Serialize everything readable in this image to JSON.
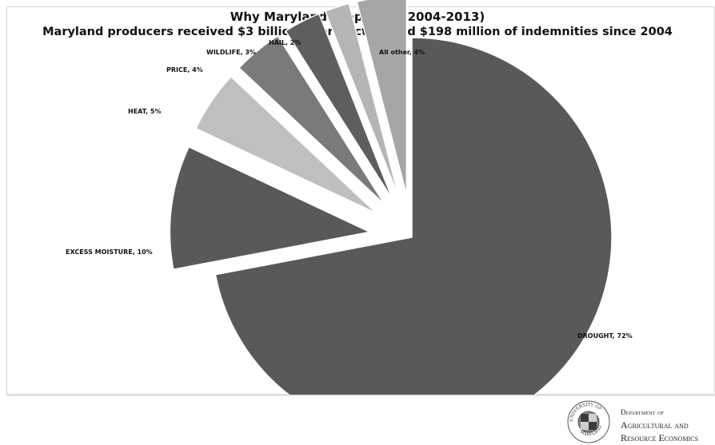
{
  "chart_data": {
    "type": "pie",
    "title": "Why Maryland Crops Fail (2004-2013)",
    "subtitle": "Maryland producers received $3 billion of protection and $198  million of indemnities since 2004",
    "slices": [
      {
        "name": "DROUGHT",
        "value": 72,
        "label": "DROUGHT, 72%",
        "color": "#595959",
        "exploded": false
      },
      {
        "name": "EXCESS MOISTURE",
        "value": 10,
        "label": "EXCESS MOISTURE, 10%",
        "color": "#595959",
        "exploded": true
      },
      {
        "name": "HEAT",
        "value": 5,
        "label": "HEAT, 5%",
        "color": "#bfbfbf",
        "exploded": true
      },
      {
        "name": "PRICE",
        "value": 4,
        "label": "PRICE, 4%",
        "color": "#7a7a7a",
        "exploded": true
      },
      {
        "name": "WILDLIFE",
        "value": 3,
        "label": "WILDLIFE, 3%",
        "color": "#5e5e5e",
        "exploded": true
      },
      {
        "name": "HAIL",
        "value": 2,
        "label": "HAIL, 2%",
        "color": "#b5b5b5",
        "exploded": true
      },
      {
        "name": "All other",
        "value": 4,
        "label": "All other, 4%",
        "color": "#a6a6a6",
        "exploded": true
      }
    ]
  },
  "footer": {
    "dept_line1": "Department of",
    "dept_line2": "Agricultural and",
    "dept_line3": "Resource Economics",
    "seal_text": "UNIVERSITY OF MARYLAND"
  }
}
